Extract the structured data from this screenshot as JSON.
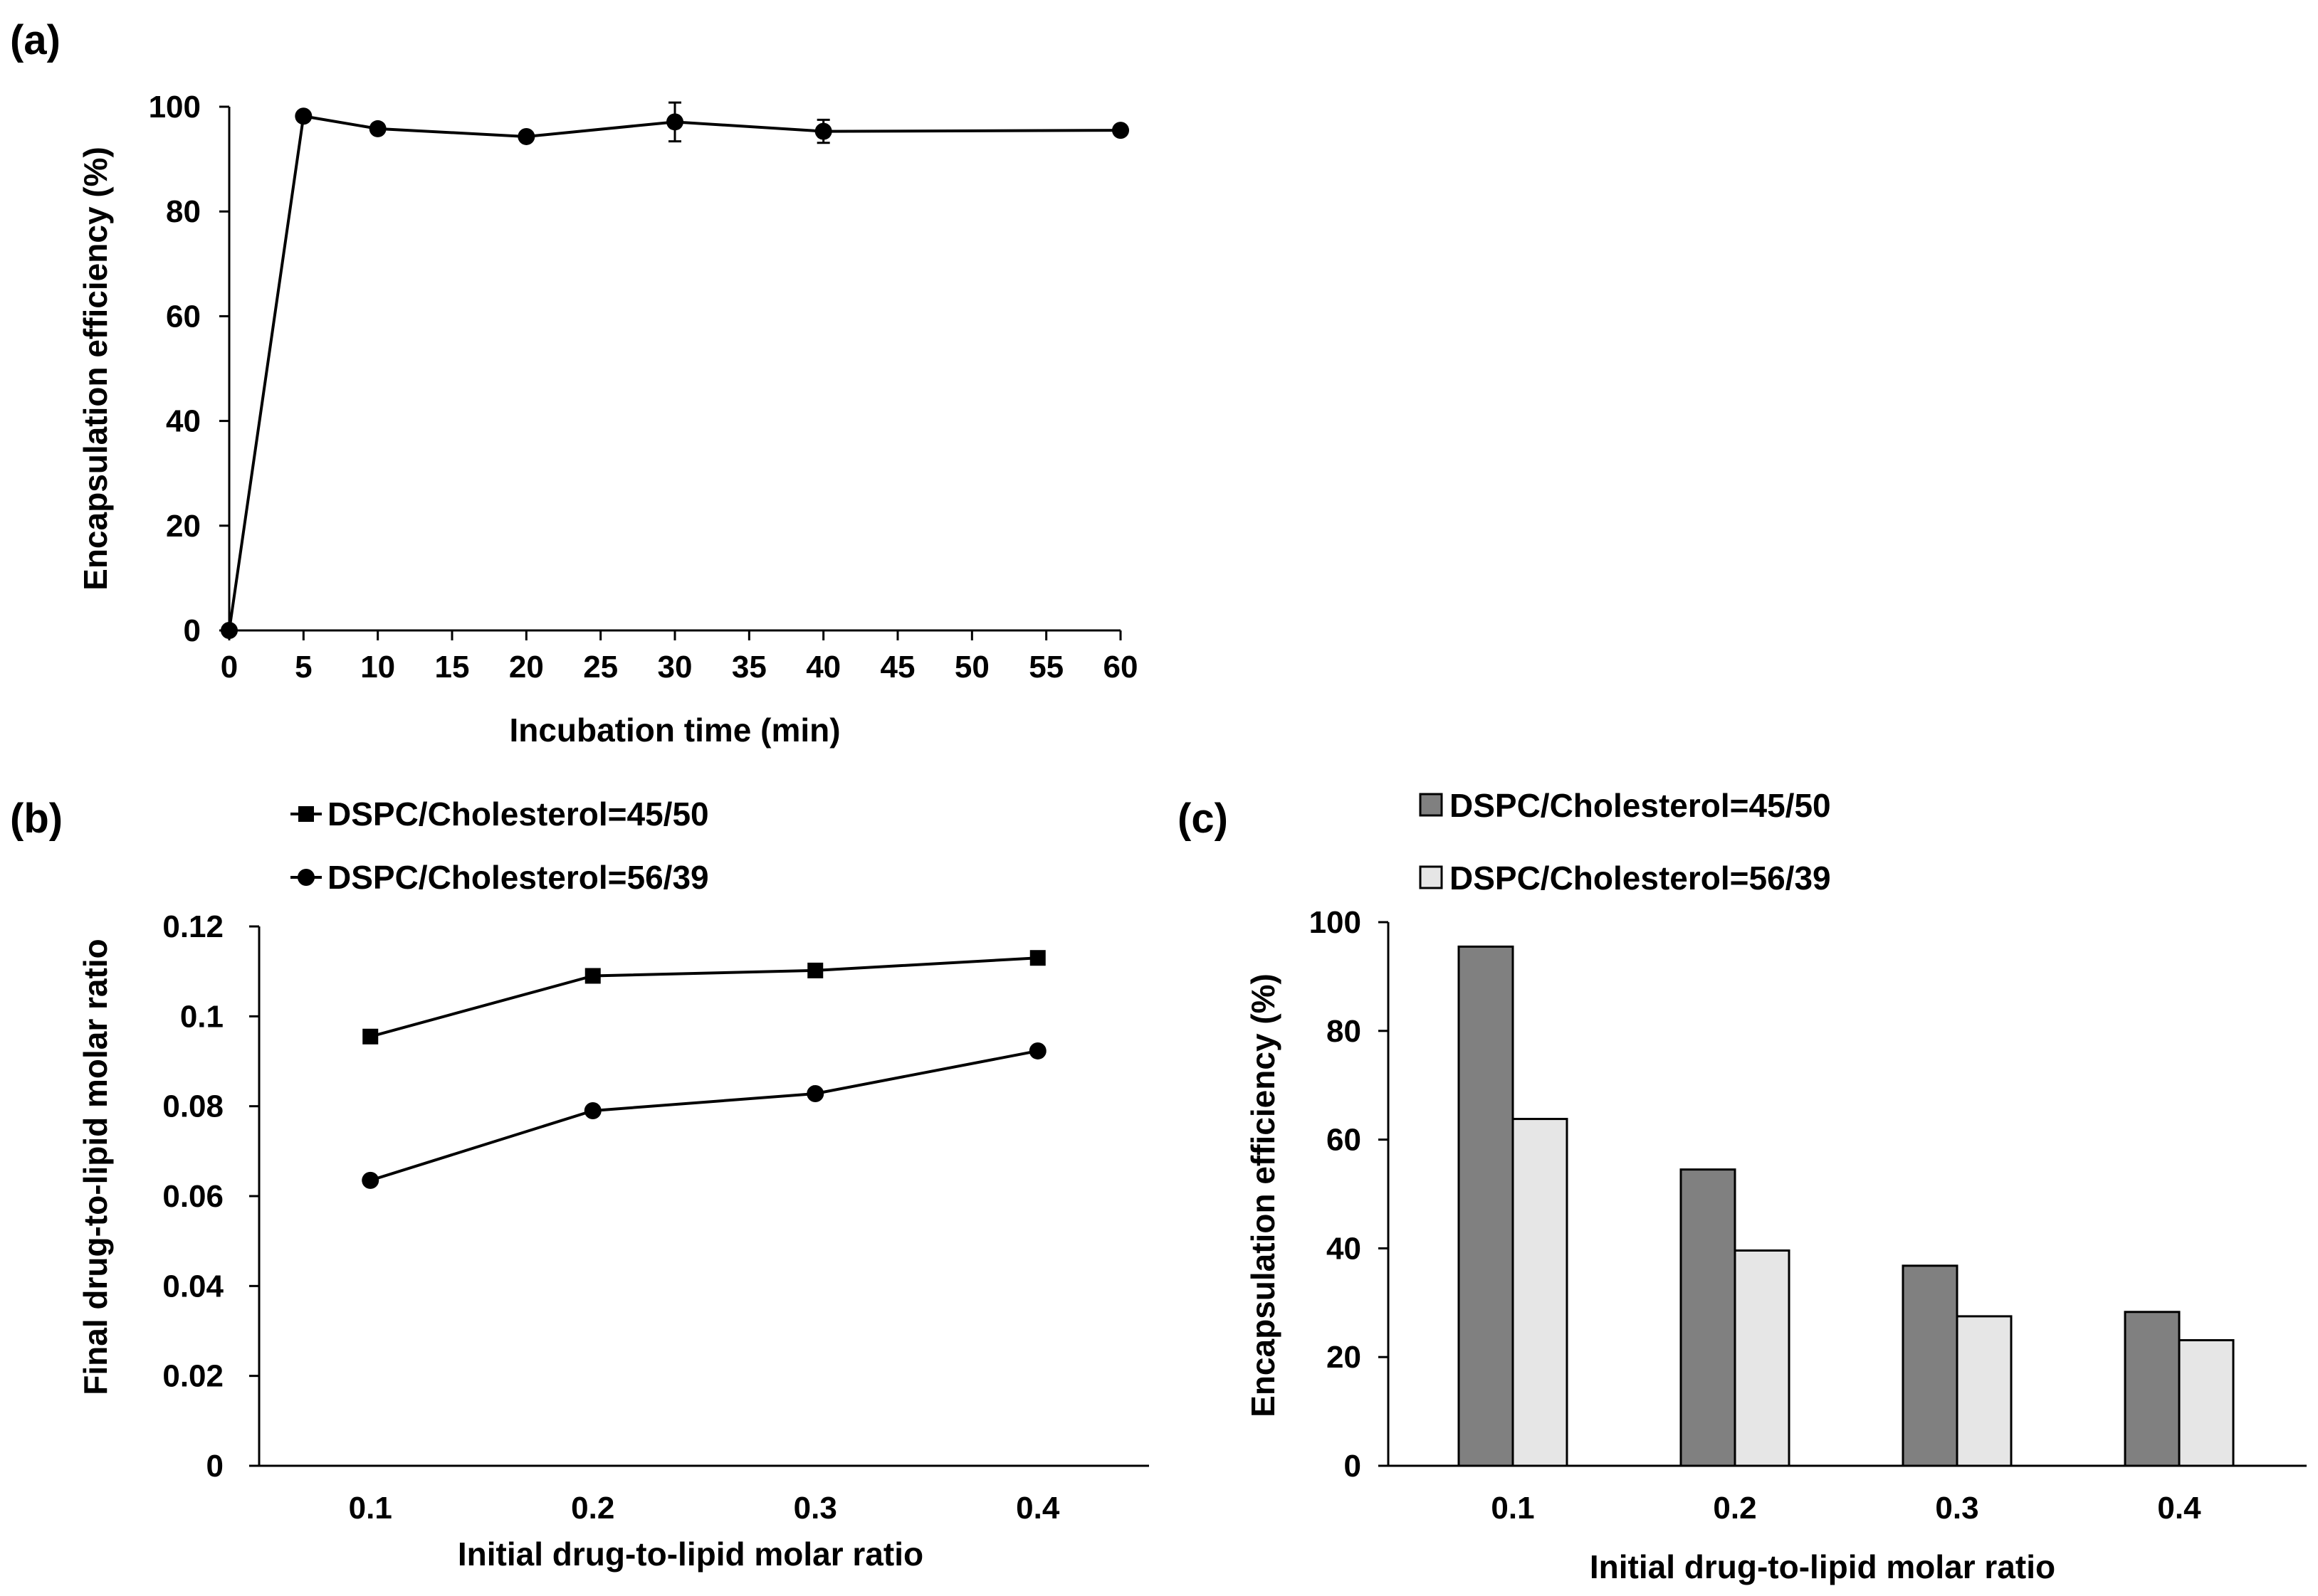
{
  "colors": {
    "line": "#000000",
    "bar_dark": "#808080",
    "bar_light": "#e6e6e6",
    "background": "#ffffff"
  },
  "chart_data": [
    {
      "panel": "(a)",
      "type": "line",
      "title": "",
      "xlabel": "Incubation time (min)",
      "ylabel": "Encapsulation efficiency (%)",
      "xlim": [
        0,
        60
      ],
      "ylim": [
        0,
        100
      ],
      "xticks": [
        0,
        5,
        10,
        15,
        20,
        25,
        30,
        35,
        40,
        45,
        50,
        55,
        60
      ],
      "yticks": [
        0,
        20,
        40,
        60,
        80,
        100
      ],
      "grid": false,
      "series": [
        {
          "name": "Encapsulation efficiency",
          "marker": "circle",
          "x": [
            0,
            5,
            10,
            20,
            30,
            40,
            60
          ],
          "values": [
            0,
            98.2,
            95.8,
            94.3,
            97.1,
            95.3,
            95.5
          ],
          "error": [
            0,
            0,
            0,
            0,
            3.7,
            2.2,
            0
          ]
        }
      ]
    },
    {
      "panel": "(b)",
      "type": "line",
      "title": "",
      "xlabel": "Initial drug-to-lipid molar ratio",
      "ylabel": "Final drug-to-lipid molar ratio",
      "xlim": [
        0.05,
        0.45
      ],
      "ylim": [
        0,
        0.12
      ],
      "xticks": [
        "0.1",
        "0.2",
        "0.3",
        "0.4"
      ],
      "x": [
        0.1,
        0.2,
        0.3,
        0.4
      ],
      "yticks": [
        "0",
        "0.02",
        "0.04",
        "0.06",
        "0.08",
        "0.1",
        "0.12"
      ],
      "grid": false,
      "legend_position": "top",
      "series": [
        {
          "name": "DSPC/Cholesterol=45/50",
          "marker": "square",
          "values": [
            0.0955,
            0.109,
            0.1102,
            0.113
          ]
        },
        {
          "name": "DSPC/Cholesterol=56/39",
          "marker": "circle",
          "values": [
            0.0635,
            0.079,
            0.0828,
            0.0923
          ]
        }
      ]
    },
    {
      "panel": "(c)",
      "type": "bar",
      "title": "",
      "xlabel": "Initial drug-to-lipid molar ratio",
      "ylabel": "Encapsulation efficiency (%)",
      "ylim": [
        0,
        100
      ],
      "yticks": [
        0,
        20,
        40,
        60,
        80,
        100
      ],
      "categories": [
        "0.1",
        "0.2",
        "0.3",
        "0.4"
      ],
      "grid": false,
      "legend_position": "top",
      "series": [
        {
          "name": "DSPC/Cholesterol=45/50",
          "color": "#808080",
          "values": [
            95.5,
            54.5,
            36.8,
            28.3
          ]
        },
        {
          "name": "DSPC/Cholesterol=56/39",
          "color": "#e6e6e6",
          "values": [
            63.8,
            39.6,
            27.5,
            23.1
          ]
        }
      ]
    }
  ]
}
